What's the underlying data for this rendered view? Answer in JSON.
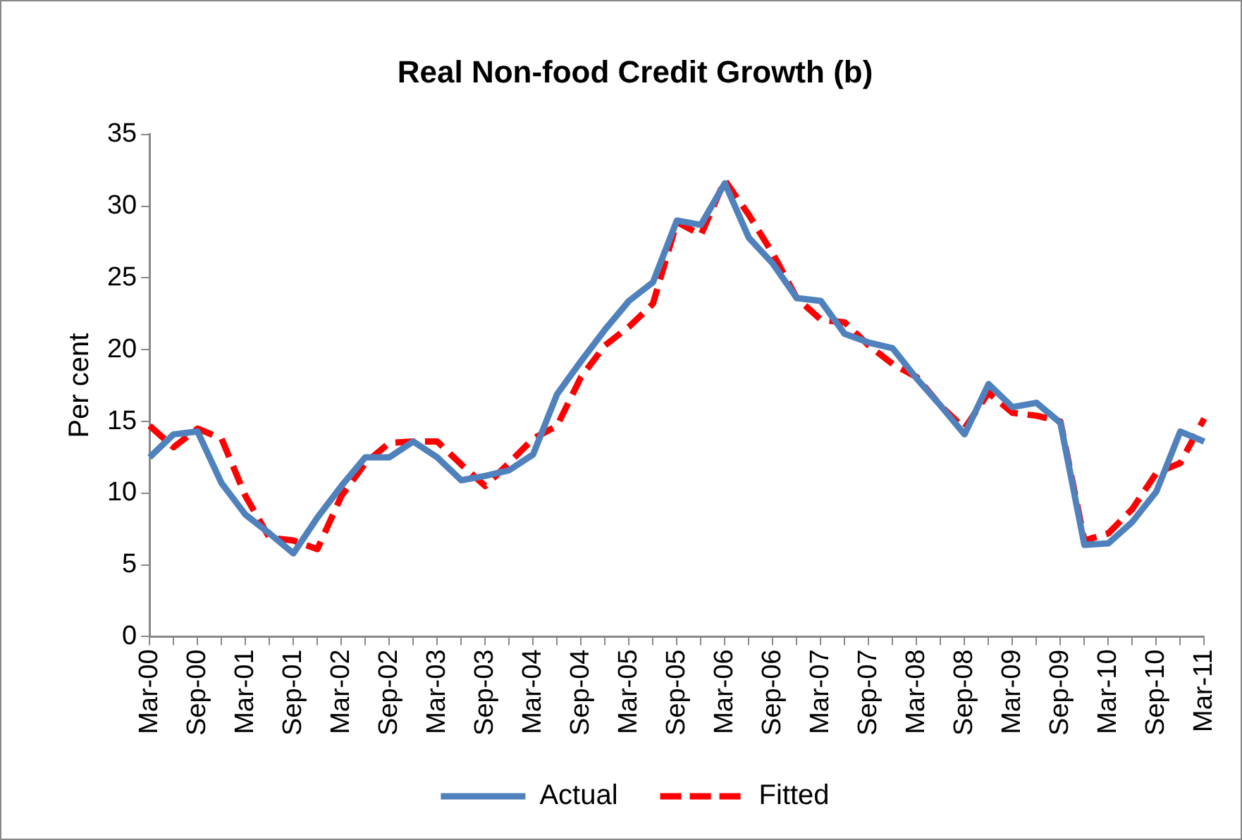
{
  "chart_data": {
    "type": "line",
    "title": "Real Non-food Credit Growth (b)",
    "ylabel": "Per cent",
    "categories": [
      "Mar-00",
      null,
      "Sep-00",
      null,
      "Mar-01",
      null,
      "Sep-01",
      null,
      "Mar-02",
      null,
      "Sep-02",
      null,
      "Mar-03",
      null,
      "Sep-03",
      null,
      "Mar-04",
      null,
      "Sep-04",
      null,
      "Mar-05",
      null,
      "Sep-05",
      null,
      "Mar-06",
      null,
      "Sep-06",
      null,
      "Mar-07",
      null,
      "Sep-07",
      null,
      "Mar-08",
      null,
      "Sep-08",
      null,
      "Mar-09",
      null,
      "Sep-09",
      null,
      "Mar-10",
      null,
      "Sep-10",
      null,
      "Mar-11"
    ],
    "series": [
      {
        "name": "Actual",
        "color": "#4f81bd",
        "line_style": "solid",
        "values": [
          12.5,
          14.1,
          14.3,
          10.7,
          8.5,
          7.2,
          5.8,
          8.3,
          10.5,
          12.5,
          12.5,
          13.6,
          12.5,
          10.9,
          11.2,
          11.6,
          12.7,
          16.9,
          19.2,
          21.4,
          23.4,
          24.7,
          29.0,
          28.7,
          31.6,
          27.8,
          26.0,
          23.6,
          23.4,
          21.1,
          20.5,
          20.1,
          18.0,
          16.1,
          14.1,
          17.6,
          16.0,
          16.3,
          14.9,
          6.4,
          6.5,
          8.0,
          10.1,
          14.3,
          13.6
        ]
      },
      {
        "name": "Fitted",
        "color": "#ff0000",
        "line_style": "dashed",
        "values": [
          14.7,
          13.2,
          14.5,
          13.8,
          9.8,
          6.9,
          6.7,
          6.1,
          9.8,
          12.1,
          13.5,
          13.6,
          13.6,
          12.0,
          10.5,
          12.1,
          13.8,
          14.7,
          18.1,
          20.3,
          21.6,
          23.2,
          28.9,
          28.0,
          31.8,
          29.4,
          26.7,
          23.6,
          22.1,
          21.9,
          20.3,
          19.0,
          18.1,
          16.1,
          14.5,
          17.0,
          15.6,
          15.4,
          15.0,
          6.7,
          7.2,
          8.9,
          11.4,
          12.1,
          15.2
        ]
      }
    ],
    "ylim": [
      0,
      35
    ],
    "yticks": [
      0,
      5,
      10,
      15,
      20,
      25,
      30,
      35
    ],
    "grid": false,
    "legend": "bottom",
    "marker": "none"
  }
}
